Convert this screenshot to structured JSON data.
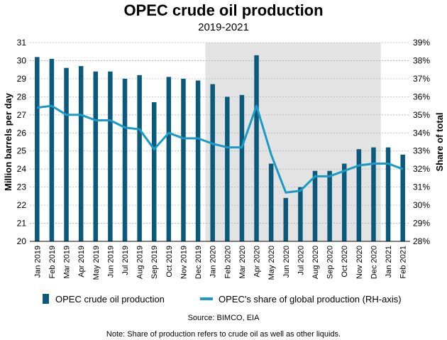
{
  "chart_data": {
    "type": "bar+line",
    "title": "OPEC crude oil production",
    "subtitle": "2019-2021",
    "ylabel": "Million barrels per day",
    "y2label": "Share of total",
    "ylim": [
      20,
      31
    ],
    "y2lim": [
      28,
      39
    ],
    "yticks": [
      "20",
      "21",
      "22",
      "23",
      "24",
      "25",
      "26",
      "27",
      "28",
      "29",
      "30",
      "31"
    ],
    "y2ticks": [
      "28%",
      "29%",
      "30%",
      "31%",
      "32%",
      "33%",
      "34%",
      "35%",
      "36%",
      "37%",
      "38%",
      "39%"
    ],
    "grid": true,
    "shaded_range": [
      "Jan 2020",
      "Dec 2020"
    ],
    "categories": [
      "Jan 2019",
      "Feb 2019",
      "Mar 2019",
      "Apr 2019",
      "May 2019",
      "Jun 2019",
      "Jul 2019",
      "Aug 2019",
      "Sep 2019",
      "Oct 2019",
      "Nov 2019",
      "Dec 2019",
      "Jan 2020",
      "Feb 2020",
      "Mar 2020",
      "Apr 2020",
      "May 2020",
      "Jun 2020",
      "Jul 2020",
      "Aug 2020",
      "Sep 2020",
      "Oct 2020",
      "Nov 2020",
      "Dec 2020",
      "Jan 2021",
      "Feb 2021"
    ],
    "series": [
      {
        "name": "OPEC crude oil production",
        "type": "bar",
        "axis": "left",
        "color": "#0b5a7c",
        "values": [
          30.2,
          30.1,
          29.6,
          29.7,
          29.4,
          29.4,
          29.0,
          29.2,
          27.7,
          29.1,
          29.0,
          28.9,
          28.7,
          28.0,
          28.1,
          30.3,
          24.3,
          22.4,
          23.0,
          23.9,
          23.9,
          24.3,
          25.1,
          25.2,
          25.2,
          24.8
        ]
      },
      {
        "name": "OPEC's share of global production (RH-axis)",
        "type": "line",
        "axis": "right",
        "color": "#1a9bc7",
        "values": [
          35.4,
          35.5,
          35.0,
          35.0,
          34.7,
          34.7,
          34.3,
          34.2,
          33.1,
          34.0,
          33.7,
          33.7,
          33.4,
          33.2,
          33.2,
          35.5,
          32.8,
          30.7,
          30.8,
          31.6,
          31.6,
          31.9,
          32.2,
          32.3,
          32.3,
          32.0
        ]
      }
    ],
    "legend_position": "bottom",
    "source": "Source: BIMCO, EIA",
    "note": "Note: Share of production refers to crude oil as well as other liquids."
  }
}
